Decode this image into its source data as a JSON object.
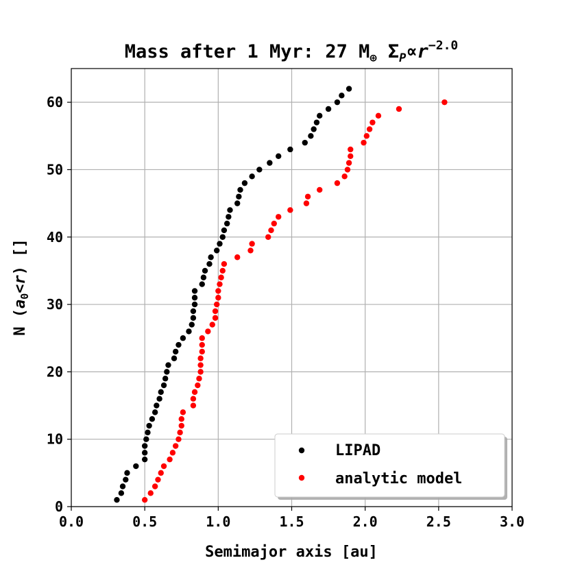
{
  "chart_data": {
    "type": "scatter",
    "title": {
      "prefix": "Mass after ",
      "time": "1 Myr",
      "sep": ": ",
      "mass_value": "27",
      "mass_unit": "M",
      "mass_unit_sub": "⊕",
      "sigma": "Σ",
      "sigma_sub": "P",
      "propto": "∝",
      "r": "r",
      "exponent": "−2.0"
    },
    "xlabel": "Semimajor axis [au]",
    "ylabel": {
      "prefix": "N (",
      "a": "a",
      "a_sub": "0",
      "lt": "<",
      "r": "r",
      "suffix": ") []"
    },
    "xlim": [
      0.0,
      3.0
    ],
    "ylim": [
      0,
      65
    ],
    "xticks": [
      0.0,
      0.5,
      1.0,
      1.5,
      2.0,
      2.5,
      3.0
    ],
    "xtick_labels": [
      "0.0",
      "0.5",
      "1.0",
      "1.5",
      "2.0",
      "2.5",
      "3.0"
    ],
    "yticks": [
      0,
      10,
      20,
      30,
      40,
      50,
      60
    ],
    "ytick_labels": [
      "0",
      "10",
      "20",
      "30",
      "40",
      "50",
      "60"
    ],
    "grid": true,
    "legend_position": "lower-right",
    "series": [
      {
        "name": "LIPAD",
        "color": "#000000",
        "x": [
          0.31,
          0.34,
          0.35,
          0.37,
          0.38,
          0.44,
          0.5,
          0.5,
          0.5,
          0.51,
          0.52,
          0.53,
          0.55,
          0.57,
          0.58,
          0.6,
          0.61,
          0.63,
          0.64,
          0.65,
          0.66,
          0.7,
          0.71,
          0.73,
          0.76,
          0.8,
          0.82,
          0.83,
          0.83,
          0.84,
          0.84,
          0.84,
          0.89,
          0.9,
          0.91,
          0.94,
          0.95,
          0.99,
          1.01,
          1.03,
          1.04,
          1.06,
          1.07,
          1.08,
          1.13,
          1.14,
          1.15,
          1.18,
          1.23,
          1.28,
          1.35,
          1.41,
          1.49,
          1.59,
          1.63,
          1.65,
          1.67,
          1.69,
          1.75,
          1.81,
          1.84,
          1.89
        ],
        "y": [
          1,
          2,
          3,
          4,
          5,
          6,
          7,
          8,
          9,
          10,
          11,
          12,
          13,
          14,
          15,
          16,
          17,
          18,
          19,
          20,
          21,
          22,
          23,
          24,
          25,
          26,
          27,
          28,
          29,
          30,
          31,
          32,
          33,
          34,
          35,
          36,
          37,
          38,
          39,
          40,
          41,
          42,
          43,
          44,
          45,
          46,
          47,
          48,
          49,
          50,
          51,
          52,
          53,
          54,
          55,
          56,
          57,
          58,
          59,
          60,
          61,
          62
        ]
      },
      {
        "name": "analytic model",
        "color": "#ff0000",
        "x": [
          0.5,
          0.54,
          0.57,
          0.59,
          0.61,
          0.63,
          0.67,
          0.69,
          0.71,
          0.73,
          0.74,
          0.75,
          0.75,
          0.76,
          0.83,
          0.83,
          0.84,
          0.86,
          0.87,
          0.88,
          0.88,
          0.88,
          0.89,
          0.89,
          0.89,
          0.93,
          0.96,
          0.98,
          0.98,
          0.99,
          1.0,
          1.0,
          1.01,
          1.02,
          1.03,
          1.04,
          1.13,
          1.22,
          1.23,
          1.34,
          1.36,
          1.38,
          1.41,
          1.49,
          1.6,
          1.61,
          1.69,
          1.81,
          1.86,
          1.88,
          1.89,
          1.9,
          1.9,
          1.99,
          2.01,
          2.03,
          2.05,
          2.09,
          2.23,
          2.54
        ],
        "y": [
          1,
          2,
          3,
          4,
          5,
          6,
          7,
          8,
          9,
          10,
          11,
          12,
          13,
          14,
          15,
          16,
          17,
          18,
          19,
          20,
          21,
          22,
          23,
          24,
          25,
          26,
          27,
          28,
          29,
          30,
          31,
          32,
          33,
          34,
          35,
          36,
          37,
          38,
          39,
          40,
          41,
          42,
          43,
          44,
          45,
          46,
          47,
          48,
          49,
          50,
          51,
          52,
          53,
          54,
          55,
          56,
          57,
          58,
          59,
          60
        ]
      }
    ]
  }
}
